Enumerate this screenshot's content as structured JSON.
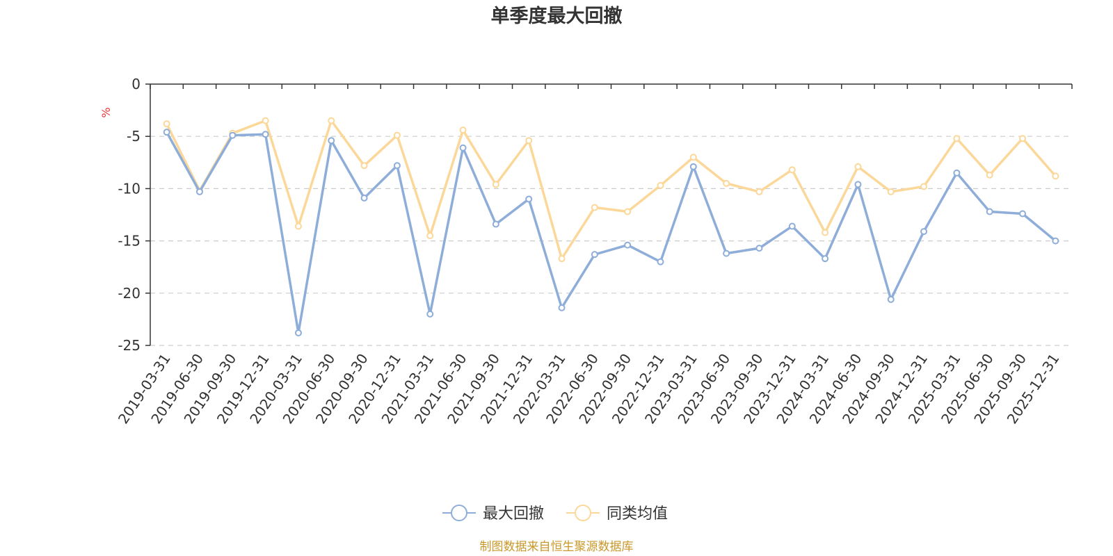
{
  "chart_data": {
    "type": "line",
    "title": "单季度最大回撤",
    "ylabel": "%",
    "ylim": [
      -25,
      0
    ],
    "yticks": [
      0,
      -5,
      -10,
      -15,
      -20,
      -25
    ],
    "grid": true,
    "legend_position": "bottom",
    "categories": [
      "2019-03-31",
      "2019-06-30",
      "2019-09-30",
      "2019-12-31",
      "2020-03-31",
      "2020-06-30",
      "2020-09-30",
      "2020-12-31",
      "2021-03-31",
      "2021-06-30",
      "2021-09-30",
      "2021-12-31",
      "2022-03-31",
      "2022-06-30",
      "2022-09-30",
      "2022-12-31",
      "2023-03-31",
      "2023-06-30",
      "2023-09-30",
      "2023-12-31",
      "2024-03-31",
      "2024-06-30",
      "2024-09-30",
      "2024-12-31",
      "2025-03-31",
      "2025-06-30",
      "2025-09-30",
      "2025-12-31"
    ],
    "series": [
      {
        "name": "最大回撤",
        "color": "#8eadd9",
        "values": [
          -4.6,
          -10.3,
          -4.9,
          -4.8,
          -23.8,
          -5.4,
          -10.9,
          -7.8,
          -22.0,
          -6.1,
          -13.4,
          -11.0,
          -21.4,
          -16.3,
          -15.4,
          -17.0,
          -7.9,
          -16.2,
          -15.7,
          -13.6,
          -16.7,
          -9.6,
          -20.6,
          -14.1,
          -8.5,
          -12.2,
          -12.4,
          -15.0
        ]
      },
      {
        "name": "同类均值",
        "color": "#fbd899",
        "values": [
          -3.8,
          -10.2,
          -4.7,
          -3.5,
          -13.6,
          -3.5,
          -7.8,
          -4.9,
          -14.5,
          -4.4,
          -9.6,
          -5.4,
          -16.7,
          -11.8,
          -12.2,
          -9.7,
          -7.0,
          -9.5,
          -10.3,
          -8.2,
          -14.2,
          -7.9,
          -10.3,
          -9.8,
          -5.2,
          -8.7,
          -5.2,
          -8.8
        ]
      }
    ]
  },
  "footer": {
    "source": "制图数据来自恒生聚源数据库"
  }
}
